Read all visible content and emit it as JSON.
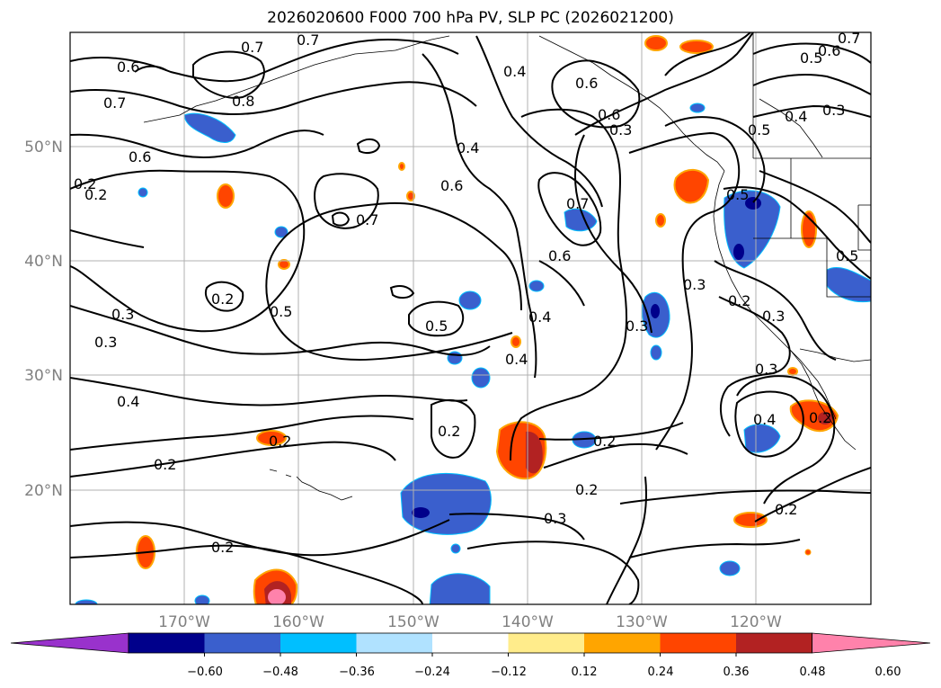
{
  "title": "2026020600 F000 700 hPa PV, SLP PC (2026021200)",
  "lat_labels": [
    "50°N",
    "40°N",
    "30°N",
    "20°N"
  ],
  "lon_labels": [
    "170°W",
    "160°W",
    "150°W",
    "140°W",
    "130°W",
    "120°W"
  ],
  "colorbar": {
    "tick_labels": [
      "−0.60",
      "−0.48",
      "−0.36",
      "−0.24",
      "−0.12",
      "0.12",
      "0.24",
      "0.36",
      "0.48",
      "0.60"
    ],
    "colors": [
      "#9932cc",
      "#00008b",
      "#3a5fcd",
      "#00bfff",
      "#b0e2ff",
      "#ffffff",
      "#ffec8b",
      "#ffa500",
      "#ff4500",
      "#b22222",
      "#ff82ab"
    ]
  },
  "contour_labels": [
    "0.7",
    "0.7",
    "0.6",
    "0.7",
    "0.8",
    "0.6",
    "0.2",
    "0.2",
    "0.3",
    "0.3",
    "0.4",
    "0.2",
    "0.2",
    "0.5",
    "0.7",
    "0.6",
    "0.5",
    "0.4",
    "0.4",
    "0.6",
    "0.3",
    "0.6",
    "0.7",
    "0.6",
    "0.4",
    "0.3",
    "0.2",
    "0.2",
    "0.2",
    "0.3",
    "0.2",
    "0.4",
    "0.3",
    "0.5",
    "0.6",
    "0.7",
    "0.5",
    "0.4",
    "0.3",
    "0.5",
    "0.3",
    "0.2",
    "0.5",
    "0.3",
    "0.4",
    "0.2",
    "0.2",
    "0.2"
  ]
}
